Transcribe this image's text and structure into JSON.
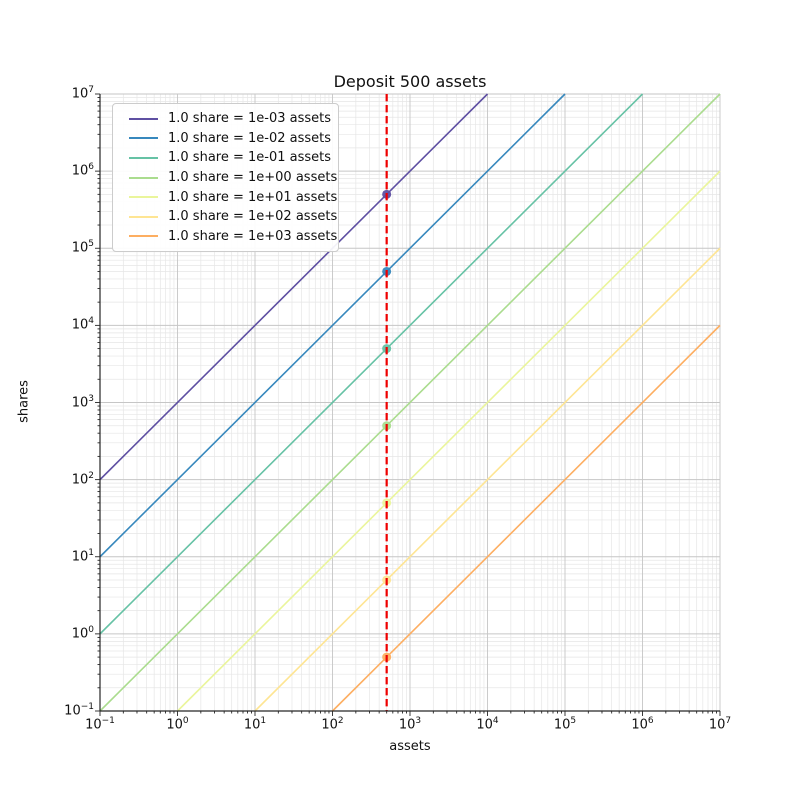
{
  "chart_data": {
    "type": "line",
    "title": "Deposit 500 assets",
    "xlabel": "assets",
    "ylabel": "shares",
    "xscale": "log",
    "yscale": "log",
    "xlim": [
      0.1,
      10000000
    ],
    "ylim": [
      0.1,
      10000000
    ],
    "x_tick_exponents": [
      -1,
      0,
      1,
      2,
      3,
      4,
      5,
      6,
      7
    ],
    "y_tick_exponents": [
      -1,
      0,
      1,
      2,
      3,
      4,
      5,
      6,
      7
    ],
    "grid": {
      "which": "both",
      "major_color": "#c6c6c6",
      "minor_color": "#e6e6e6"
    },
    "legend": {
      "location": "upper left"
    },
    "deposit_assets": 500,
    "series": [
      {
        "label": "1.0 share = 1e-03 assets",
        "assets_per_share": 0.001,
        "color": "#5e4fa2"
      },
      {
        "label": "1.0 share = 1e-02 assets",
        "assets_per_share": 0.01,
        "color": "#3788bd"
      },
      {
        "label": "1.0 share = 1e-01 assets",
        "assets_per_share": 0.1,
        "color": "#66c2a5"
      },
      {
        "label": "1.0 share = 1e+00 assets",
        "assets_per_share": 1.0,
        "color": "#aadc8e"
      },
      {
        "label": "1.0 share = 1e+01 assets",
        "assets_per_share": 10.0,
        "color": "#eaf59b"
      },
      {
        "label": "1.0 share = 1e+02 assets",
        "assets_per_share": 100.0,
        "color": "#fee593"
      },
      {
        "label": "1.0 share = 1e+03 assets",
        "assets_per_share": 1000.0,
        "color": "#fdae61"
      }
    ],
    "markers": [
      {
        "x": 500,
        "y": 500000,
        "color": "#5e4fa2"
      },
      {
        "x": 500,
        "y": 50000,
        "color": "#3788bd"
      },
      {
        "x": 500,
        "y": 5000,
        "color": "#66c2a5"
      },
      {
        "x": 500,
        "y": 500,
        "color": "#aadc8e"
      },
      {
        "x": 500,
        "y": 50,
        "color": "#eaf59b"
      },
      {
        "x": 500,
        "y": 5,
        "color": "#fee593"
      },
      {
        "x": 500,
        "y": 0.5,
        "color": "#fdae61"
      }
    ],
    "vline": {
      "x": 500,
      "color": "#ee0000",
      "style": "dashed"
    }
  }
}
